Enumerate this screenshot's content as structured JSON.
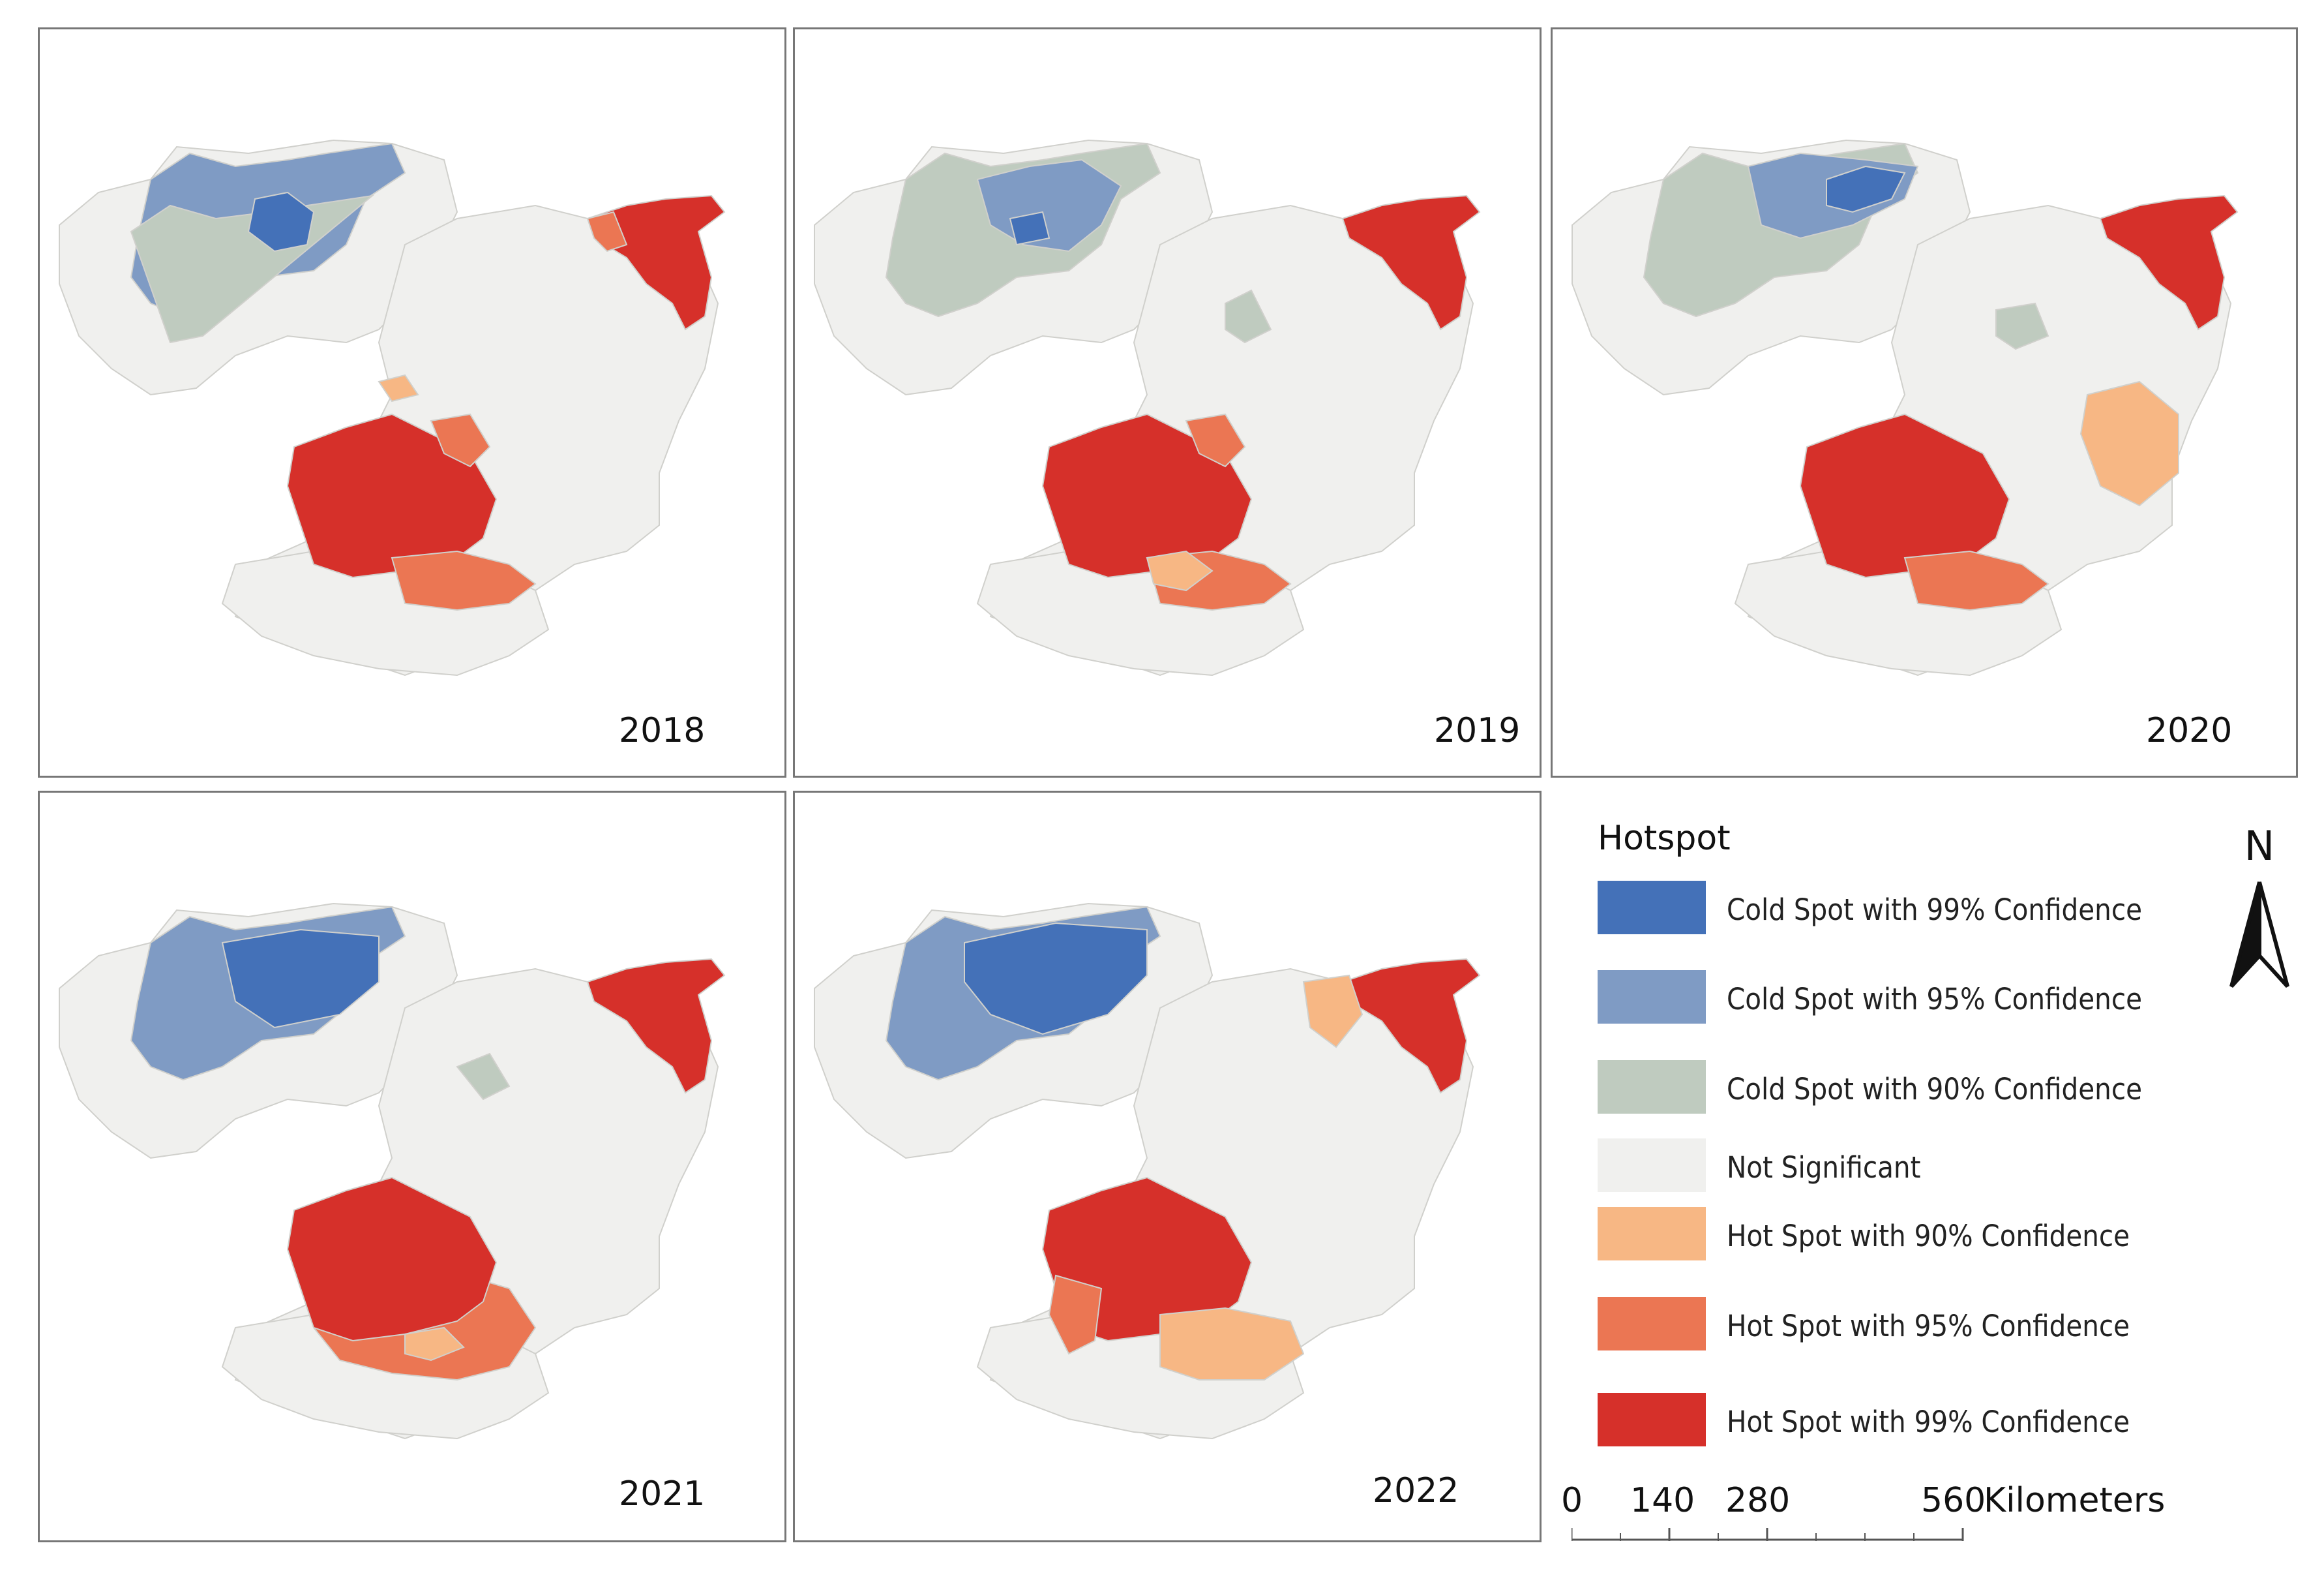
{
  "figure": {
    "panels": [
      {
        "year": "2018"
      },
      {
        "year": "2019"
      },
      {
        "year": "2020"
      },
      {
        "year": "2021"
      },
      {
        "year": "2022"
      }
    ]
  },
  "legend": {
    "title": "Hotspot",
    "items": [
      {
        "label": "Cold Spot with 99% Confidence",
        "color": "#4471b8"
      },
      {
        "label": "Cold Spot with 95% Confidence",
        "color": "#7f9bc4"
      },
      {
        "label": "Cold Spot with 90% Confidence",
        "color": "#bfcbbf"
      },
      {
        "label": "Not Significant",
        "color": "#f0f0ee"
      },
      {
        "label": "Hot Spot with 90% Confidence",
        "color": "#f7b784"
      },
      {
        "label": "Hot Spot with 95% Confidence",
        "color": "#eb7653"
      },
      {
        "label": "Hot Spot with 99% Confidence",
        "color": "#d6302a"
      }
    ]
  },
  "north_arrow": {
    "label": "N"
  },
  "scale_bar": {
    "ticks": [
      "0",
      "140",
      "280",
      "560"
    ],
    "unit": "Kilometers"
  }
}
